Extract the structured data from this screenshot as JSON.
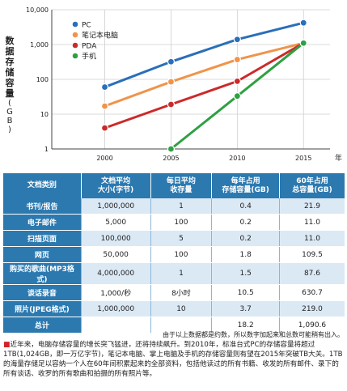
{
  "chart_data": {
    "type": "line",
    "x": [
      2000,
      2005,
      2010,
      2015
    ],
    "xlabel": "年",
    "ylabel": "数据存储容量(GB)",
    "yscale": "log",
    "ylim": [
      1,
      10000
    ],
    "yticks": [
      "1",
      "10",
      "100",
      "1,000",
      "10,000"
    ],
    "legend_position": "top-left",
    "series": [
      {
        "name": "PC",
        "color": "#2a6fba",
        "points": [
          [
            2000,
            60
          ],
          [
            2005,
            320
          ],
          [
            2010,
            1400
          ],
          [
            2015,
            4200
          ]
        ]
      },
      {
        "name": "笔记本电脑",
        "color": "#f0944a",
        "points": [
          [
            2000,
            17
          ],
          [
            2005,
            85
          ],
          [
            2010,
            370
          ],
          [
            2015,
            1100
          ]
        ]
      },
      {
        "name": "PDA",
        "color": "#cc2a2a",
        "points": [
          [
            2000,
            4
          ],
          [
            2005,
            19
          ],
          [
            2010,
            88
          ],
          [
            2015,
            1100
          ]
        ]
      },
      {
        "name": "手机",
        "color": "#2fa042",
        "points": [
          [
            2005,
            1
          ],
          [
            2010,
            33
          ],
          [
            2015,
            1100
          ]
        ]
      }
    ]
  },
  "table": {
    "headers": [
      {
        "line1": "文档类别",
        "line2": ""
      },
      {
        "line1": "文档平均",
        "line2": "大小(字节)"
      },
      {
        "line1": "每日平均",
        "line2": "收存量"
      },
      {
        "line1": "每年占用",
        "line2": "存储容量(GB)"
      },
      {
        "line1": "60年占用",
        "line2": "总容量(GB)"
      }
    ],
    "rows": [
      [
        "书刊/报告",
        "1,000,000",
        "1",
        "0.4",
        "21.9"
      ],
      [
        "电子邮件",
        "5,000",
        "100",
        "0.2",
        "11.0"
      ],
      [
        "扫描页面",
        "100,000",
        "5",
        "0.2",
        "11.0"
      ],
      [
        "网页",
        "50,000",
        "100",
        "1.8",
        "109.5"
      ],
      [
        "购买的歌曲(MP3格式)",
        "4,000,000",
        "1",
        "1.5",
        "87.6"
      ],
      [
        "谈话录音",
        "1,000/秒",
        "8小时",
        "10.5",
        "630.7"
      ],
      [
        "照片(JPEG格式)",
        "1,000,000",
        "10",
        "3.7",
        "219.0"
      ],
      [
        "总计",
        "",
        "",
        "18.2",
        "1,090.6"
      ]
    ]
  },
  "footnote": "由于以上数据都是约数，所以数字加起来和总数可能稍有出入。",
  "paragraph": "近年来，电脑存储容量的增长突飞猛进，还将持续飙升。到2010年，标准台式PC的存储容量将超过1TB(1,024GB，即一万亿字节)，笔记本电脑、掌上电脑及手机的存储容量则有望在2015年突破TB大关。1TB的海量存储足以容纳一个人在60年间积累起来的全部资料，包括他读过的所有书籍、收发的所有邮件、录下的所有谈话、收罗的所有歌曲和拍摄的所有照片等。"
}
